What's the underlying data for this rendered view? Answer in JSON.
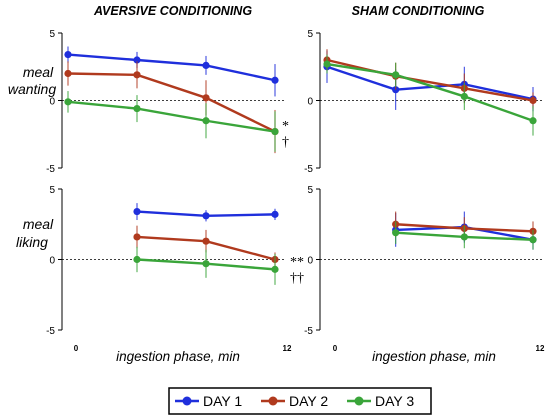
{
  "panel_titles": {
    "left": "AVERSIVE CONDITIONING",
    "right": "SHAM CONDITIONING"
  },
  "row_labels": {
    "wanting": [
      "meal",
      "wanting"
    ],
    "liking": [
      "meal",
      "liking"
    ]
  },
  "x_axis_label": "ingestion phase, min",
  "annotations": {
    "wanting": [
      "*",
      "†"
    ],
    "liking": [
      "**",
      "††"
    ]
  },
  "legend": [
    {
      "label": "DAY 1",
      "color": "#1f2fdc"
    },
    {
      "label": "DAY 2",
      "color": "#b03a1e"
    },
    {
      "label": "DAY 3",
      "color": "#3aa53a"
    }
  ],
  "chart_data": [
    {
      "type": "line",
      "panel": "aversive-wanting",
      "title": "AVERSIVE CONDITIONING",
      "ylabel": "meal wanting",
      "xlabel": "",
      "x_tick_labels": [],
      "ylim": [
        -5,
        5
      ],
      "y_ticks": [
        5,
        0,
        -5
      ],
      "y_tick_labels": [
        "5",
        "0",
        "-5"
      ],
      "reference_line": 0,
      "series": [
        {
          "name": "DAY 1",
          "x": [
            0,
            4,
            8,
            12
          ],
          "values": [
            3.4,
            3.0,
            2.6,
            1.5
          ],
          "error": [
            0.6,
            0.6,
            0.7,
            1.2
          ]
        },
        {
          "name": "DAY 2",
          "x": [
            0,
            4,
            8,
            12
          ],
          "values": [
            2.0,
            1.9,
            0.2,
            -2.3
          ],
          "error": [
            0.9,
            1.0,
            1.3,
            1.6
          ]
        },
        {
          "name": "DAY 3",
          "x": [
            0,
            4,
            8,
            12
          ],
          "values": [
            -0.1,
            -0.6,
            -1.5,
            -2.3
          ],
          "error": [
            0.8,
            1.0,
            1.3,
            1.5
          ]
        }
      ],
      "annotations": [
        "*",
        "†"
      ]
    },
    {
      "type": "line",
      "panel": "sham-wanting",
      "title": "SHAM CONDITIONING",
      "ylabel": "",
      "xlabel": "",
      "x_tick_labels": [],
      "ylim": [
        -5,
        5
      ],
      "y_ticks": [
        5,
        0,
        -5
      ],
      "y_tick_labels": [
        "5",
        "0",
        "-5"
      ],
      "reference_line": 0,
      "series": [
        {
          "name": "DAY 1",
          "x": [
            0,
            4,
            8,
            12
          ],
          "values": [
            2.5,
            0.8,
            1.2,
            0.1
          ],
          "error": [
            1.2,
            1.5,
            1.3,
            0.9
          ]
        },
        {
          "name": "DAY 2",
          "x": [
            0,
            4,
            8,
            12
          ],
          "values": [
            3.0,
            1.8,
            0.9,
            0.0
          ],
          "error": [
            0.8,
            1.0,
            1.1,
            0.6
          ]
        },
        {
          "name": "DAY 3",
          "x": [
            0,
            4,
            8,
            12
          ],
          "values": [
            2.7,
            1.9,
            0.3,
            -1.5
          ],
          "error": [
            0.7,
            0.9,
            1.0,
            1.1
          ]
        }
      ]
    },
    {
      "type": "line",
      "panel": "aversive-liking",
      "title": "",
      "ylabel": "meal liking",
      "xlabel": "ingestion phase, min",
      "x_tick_labels": [
        "0",
        "12"
      ],
      "ylim": [
        -5,
        5
      ],
      "y_ticks": [
        5,
        0,
        -5
      ],
      "y_tick_labels": [
        "5",
        "0",
        "-5"
      ],
      "reference_line": 0,
      "series": [
        {
          "name": "DAY 1",
          "x": [
            4,
            8,
            12
          ],
          "values": [
            3.4,
            3.1,
            3.2
          ],
          "error": [
            0.6,
            0.4,
            0.4
          ]
        },
        {
          "name": "DAY 2",
          "x": [
            4,
            8,
            12
          ],
          "values": [
            1.6,
            1.3,
            0.0
          ],
          "error": [
            0.8,
            0.8,
            0.5
          ]
        },
        {
          "name": "DAY 3",
          "x": [
            4,
            8,
            12
          ],
          "values": [
            0.0,
            -0.3,
            -0.7
          ],
          "error": [
            0.9,
            1.0,
            1.1
          ]
        }
      ],
      "annotations": [
        "**",
        "††"
      ]
    },
    {
      "type": "line",
      "panel": "sham-liking",
      "title": "",
      "ylabel": "",
      "xlabel": "ingestion phase, min",
      "x_tick_labels": [
        "0",
        "12"
      ],
      "ylim": [
        -5,
        5
      ],
      "y_ticks": [
        5,
        0,
        -5
      ],
      "y_tick_labels": [
        "5",
        "0",
        "-5"
      ],
      "reference_line": 0,
      "series": [
        {
          "name": "DAY 1",
          "x": [
            4,
            8,
            12
          ],
          "values": [
            2.1,
            2.3,
            1.4
          ],
          "error": [
            1.2,
            1.1,
            0.7
          ]
        },
        {
          "name": "DAY 2",
          "x": [
            4,
            8,
            12
          ],
          "values": [
            2.5,
            2.2,
            2.0
          ],
          "error": [
            0.9,
            0.8,
            0.7
          ]
        },
        {
          "name": "DAY 3",
          "x": [
            4,
            8,
            12
          ],
          "values": [
            1.9,
            1.6,
            1.4
          ],
          "error": [
            0.8,
            0.8,
            0.7
          ]
        }
      ]
    }
  ]
}
